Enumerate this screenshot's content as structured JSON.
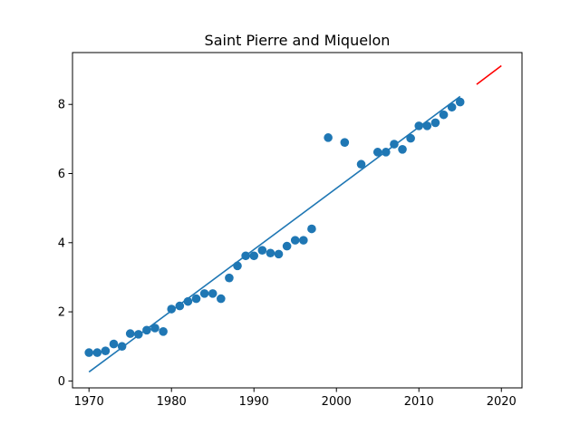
{
  "chart_data": {
    "type": "scatter",
    "title": "Saint Pierre and Miquelon",
    "xlabel": "",
    "ylabel": "",
    "xlim": [
      1968,
      2022.5
    ],
    "ylim": [
      -0.2,
      9.5
    ],
    "x_ticks": [
      1970,
      1980,
      1990,
      2000,
      2010,
      2020
    ],
    "y_ticks": [
      0,
      2,
      4,
      6,
      8
    ],
    "grid": false,
    "legend": "none",
    "colors": {
      "points": "#1f77b4",
      "fit_line": "#1f77b4",
      "projection_line": "#ff0000"
    },
    "series": [
      {
        "kind": "scatter",
        "points": [
          [
            1970,
            0.82
          ],
          [
            1971,
            0.82
          ],
          [
            1972,
            0.87
          ],
          [
            1973,
            1.07
          ],
          [
            1974,
            1.0
          ],
          [
            1975,
            1.37
          ],
          [
            1976,
            1.35
          ],
          [
            1977,
            1.47
          ],
          [
            1978,
            1.53
          ],
          [
            1979,
            1.43
          ],
          [
            1980,
            2.08
          ],
          [
            1981,
            2.17
          ],
          [
            1982,
            2.3
          ],
          [
            1983,
            2.38
          ],
          [
            1984,
            2.53
          ],
          [
            1985,
            2.53
          ],
          [
            1986,
            2.38
          ],
          [
            1987,
            2.98
          ],
          [
            1988,
            3.33
          ],
          [
            1989,
            3.62
          ],
          [
            1990,
            3.62
          ],
          [
            1991,
            3.78
          ],
          [
            1992,
            3.7
          ],
          [
            1993,
            3.67
          ],
          [
            1994,
            3.9
          ],
          [
            1995,
            4.07
          ],
          [
            1996,
            4.07
          ],
          [
            1997,
            4.4
          ],
          [
            1999,
            7.04
          ],
          [
            2001,
            6.9
          ],
          [
            2003,
            6.27
          ],
          [
            2005,
            6.62
          ],
          [
            2006,
            6.62
          ],
          [
            2007,
            6.85
          ],
          [
            2008,
            6.7
          ],
          [
            2009,
            7.02
          ],
          [
            2010,
            7.38
          ],
          [
            2011,
            7.38
          ],
          [
            2012,
            7.47
          ],
          [
            2013,
            7.7
          ],
          [
            2014,
            7.92
          ],
          [
            2015,
            8.07
          ]
        ]
      },
      {
        "kind": "line",
        "role": "fit",
        "points": [
          [
            1970,
            0.26
          ],
          [
            2015,
            8.23
          ]
        ]
      },
      {
        "kind": "line",
        "role": "projection",
        "points": [
          [
            2017,
            8.58
          ],
          [
            2020,
            9.12
          ]
        ]
      }
    ]
  }
}
